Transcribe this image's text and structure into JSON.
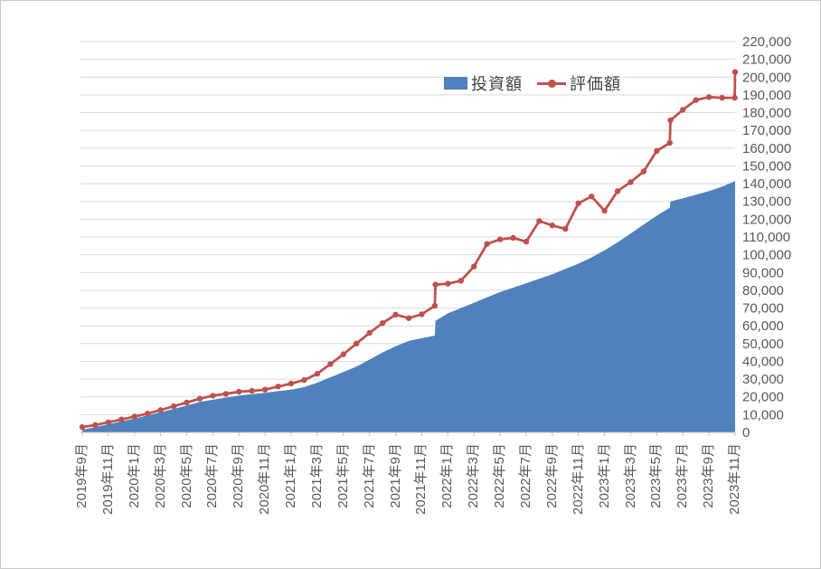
{
  "colors": {
    "investment_blue": "#4F81BD",
    "valuation_red": "#C0504D",
    "gridline": "#D9D9D9",
    "axis": "#BFBFBF",
    "tick_text": "#595959",
    "legend_text": "#404040",
    "background": "#FFFFFF"
  },
  "chart_data": {
    "type": "area",
    "subtype": "combo-area-plus-line",
    "title": "",
    "legend_position": "top-center-inside",
    "grid": "horizontal-on",
    "legend": [
      {
        "name": "投資額",
        "type": "area",
        "color": "#4F81BD"
      },
      {
        "name": "評価額",
        "type": "line-with-markers",
        "color": "#C0504D"
      }
    ],
    "x_axis": {
      "unit": "month-index (0 = 2019年9月, 50 = 2023年11月, labels every 2 months, rotated 90°)",
      "tick_labels": [
        "2019年9月",
        "2019年11月",
        "2020年1月",
        "2020年3月",
        "2020年5月",
        "2020年7月",
        "2020年9月",
        "2020年11月",
        "2021年1月",
        "2021年3月",
        "2021年5月",
        "2021年7月",
        "2021年9月",
        "2021年11月",
        "2022年1月",
        "2022年3月",
        "2022年5月",
        "2022年7月",
        "2022年9月",
        "2022年11月",
        "2023年1月",
        "2023年3月",
        "2023年5月",
        "2023年7月",
        "2023年9月",
        "2023年11月"
      ],
      "label_every_n_months": 2
    },
    "y_axis": {
      "side": "right",
      "min": 0,
      "max": 220000,
      "step": 10000,
      "tick_labels": [
        "0",
        "10,000",
        "20,000",
        "30,000",
        "40,000",
        "50,000",
        "60,000",
        "70,000",
        "80,000",
        "90,000",
        "100,000",
        "110,000",
        "120,000",
        "130,000",
        "140,000",
        "150,000",
        "160,000",
        "170,000",
        "180,000",
        "190,000",
        "200,000",
        "210,000",
        "220,000"
      ]
    },
    "series": [
      {
        "name": "投資額",
        "type": "area",
        "color": "#4F81BD",
        "points": [
          [
            0,
            1500
          ],
          [
            1,
            3000
          ],
          [
            2,
            4600
          ],
          [
            3,
            6200
          ],
          [
            4,
            7800
          ],
          [
            5,
            9500
          ],
          [
            6,
            11300
          ],
          [
            7,
            13200
          ],
          [
            8,
            15200
          ],
          [
            9,
            17200
          ],
          [
            10,
            18400
          ],
          [
            11,
            19600
          ],
          [
            12,
            20800
          ],
          [
            13,
            21500
          ],
          [
            14,
            22300
          ],
          [
            15,
            23200
          ],
          [
            16,
            24100
          ],
          [
            17,
            25500
          ],
          [
            18,
            28000
          ],
          [
            19,
            31000
          ],
          [
            20,
            34000
          ],
          [
            21,
            37000
          ],
          [
            22,
            41000
          ],
          [
            23,
            45000
          ],
          [
            24,
            48500
          ],
          [
            25,
            51500
          ],
          [
            26,
            53000
          ],
          [
            27,
            54500
          ],
          [
            27.05,
            62800
          ],
          [
            28,
            67000
          ],
          [
            29,
            70000
          ],
          [
            30,
            73000
          ],
          [
            31,
            76000
          ],
          [
            32,
            79000
          ],
          [
            33,
            81500
          ],
          [
            34,
            84000
          ],
          [
            35,
            86500
          ],
          [
            36,
            89000
          ],
          [
            37,
            92000
          ],
          [
            38,
            95000
          ],
          [
            39,
            98500
          ],
          [
            40,
            102500
          ],
          [
            41,
            107000
          ],
          [
            42,
            112000
          ],
          [
            43,
            117000
          ],
          [
            44,
            122000
          ],
          [
            45,
            126500
          ],
          [
            45.05,
            130000
          ],
          [
            46,
            131800
          ],
          [
            47,
            133800
          ],
          [
            48,
            135800
          ],
          [
            49,
            138300
          ],
          [
            50,
            141500
          ]
        ]
      },
      {
        "name": "評価額",
        "type": "line",
        "color": "#C0504D",
        "points": [
          [
            0,
            3000
          ],
          [
            1,
            4200
          ],
          [
            2,
            5700
          ],
          [
            3,
            7300
          ],
          [
            4,
            8900
          ],
          [
            5,
            10600
          ],
          [
            6,
            12600
          ],
          [
            7,
            14700
          ],
          [
            8,
            16800
          ],
          [
            9,
            19000
          ],
          [
            10,
            20700
          ],
          [
            11,
            21700
          ],
          [
            12,
            22900
          ],
          [
            13,
            23400
          ],
          [
            14,
            24100
          ],
          [
            15,
            25800
          ],
          [
            16,
            27500
          ],
          [
            17,
            29500
          ],
          [
            18,
            33000
          ],
          [
            19,
            38500
          ],
          [
            20,
            44000
          ],
          [
            21,
            50000
          ],
          [
            22,
            56000
          ],
          [
            23,
            61500
          ],
          [
            24,
            66300
          ],
          [
            25,
            64300
          ],
          [
            26,
            66500
          ],
          [
            27,
            71300
          ],
          [
            27.05,
            83200
          ],
          [
            28,
            83700
          ],
          [
            29,
            85400
          ],
          [
            30,
            93400
          ],
          [
            31,
            106100
          ],
          [
            32,
            108700
          ],
          [
            33,
            109500
          ],
          [
            34,
            107400
          ],
          [
            35,
            119000
          ],
          [
            36,
            116500
          ],
          [
            37,
            114600
          ],
          [
            38,
            129000
          ],
          [
            39,
            132800
          ],
          [
            40,
            124800
          ],
          [
            41,
            135800
          ],
          [
            42,
            140900
          ],
          [
            43,
            146900
          ],
          [
            44,
            158500
          ],
          [
            45,
            163000
          ],
          [
            45.05,
            175700
          ],
          [
            46,
            181600
          ],
          [
            47,
            187100
          ],
          [
            48,
            188800
          ],
          [
            49,
            188400
          ],
          [
            49.97,
            188400
          ],
          [
            50,
            202900
          ]
        ]
      }
    ]
  }
}
